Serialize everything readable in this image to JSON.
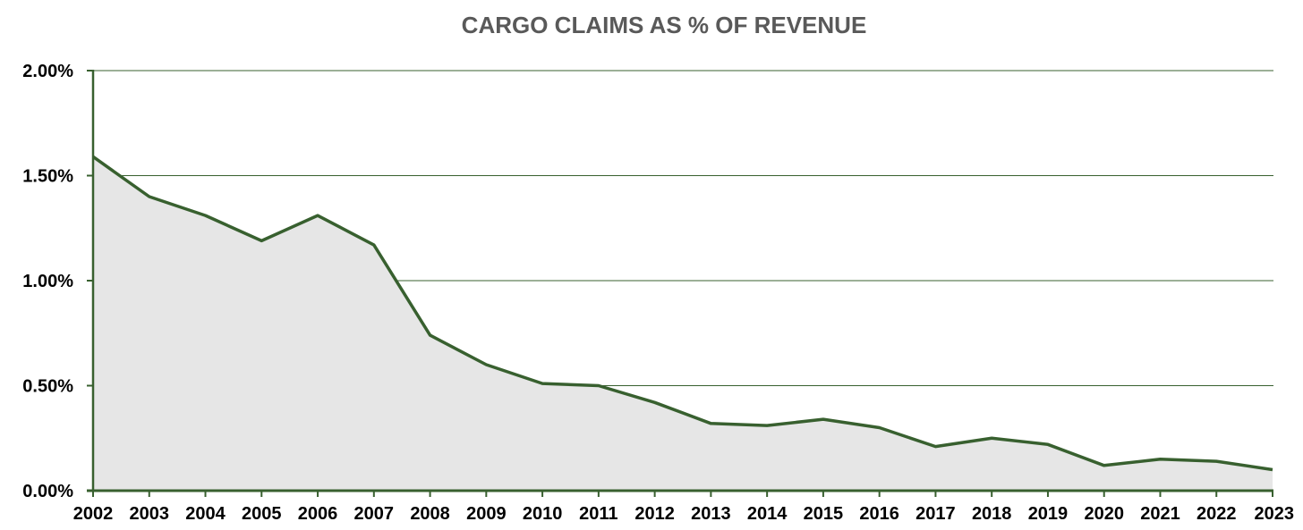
{
  "chart_data": {
    "type": "area",
    "title": "CARGO CLAIMS AS % OF REVENUE",
    "xlabel": "",
    "ylabel": "",
    "x": [
      "2002",
      "2003",
      "2004",
      "2005",
      "2006",
      "2007",
      "2008",
      "2009",
      "2010",
      "2011",
      "2012",
      "2013",
      "2014",
      "2015",
      "2016",
      "2017",
      "2018",
      "2019",
      "2020",
      "2021",
      "2022",
      "2023"
    ],
    "series": [
      {
        "values": [
          1.59,
          1.4,
          1.31,
          1.19,
          1.31,
          1.17,
          0.74,
          0.6,
          0.51,
          0.5,
          0.42,
          0.32,
          0.31,
          0.34,
          0.3,
          0.21,
          0.25,
          0.22,
          0.12,
          0.15,
          0.14,
          0.1
        ]
      }
    ],
    "ylim": [
      0,
      2.0
    ],
    "yticks": [
      "0.00%",
      "0.50%",
      "1.00%",
      "1.50%",
      "2.00%"
    ],
    "ytick_values": [
      0,
      0.5,
      1.0,
      1.5,
      2.0
    ],
    "grid": true,
    "legend": "none",
    "colors": {
      "line": "#38602f",
      "fill": "#e6e6e6",
      "grid": "#38602f",
      "axis": "#38602f",
      "title": "#595959"
    }
  }
}
